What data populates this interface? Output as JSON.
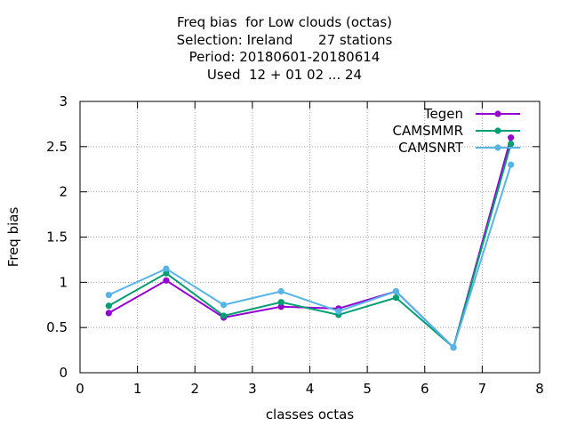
{
  "title_lines": [
    "Freq bias  for Low clouds (octas)",
    "Selection: Ireland      27 stations",
    "Period: 20180601-20180614",
    "Used  12 + 01 02 ... 24"
  ],
  "chart_data": {
    "type": "line",
    "xlabel": "classes octas",
    "ylabel": "Freq bias",
    "xlim": [
      0,
      8
    ],
    "ylim": [
      0,
      3
    ],
    "xticks": [
      "0",
      "1",
      "2",
      "3",
      "4",
      "5",
      "6",
      "7",
      "8"
    ],
    "yticks": [
      "0",
      "0.5",
      "1",
      "1.5",
      "2",
      "2.5",
      "3"
    ],
    "grid": true,
    "legend_position": "top-right",
    "x": [
      0.5,
      1.5,
      2.5,
      3.5,
      4.5,
      5.5,
      6.5,
      7.5
    ],
    "series": [
      {
        "name": "Tegen",
        "color": "#9400d3",
        "values": [
          0.66,
          1.02,
          0.61,
          0.73,
          0.71,
          0.9,
          0.28,
          2.6
        ]
      },
      {
        "name": "CAMSMMR",
        "color": "#009e73",
        "values": [
          0.74,
          1.1,
          0.63,
          0.78,
          0.64,
          0.83,
          0.28,
          2.53
        ]
      },
      {
        "name": "CAMSNRT",
        "color": "#56b4e9",
        "values": [
          0.86,
          1.15,
          0.75,
          0.9,
          0.68,
          0.9,
          0.28,
          2.3
        ]
      }
    ]
  }
}
